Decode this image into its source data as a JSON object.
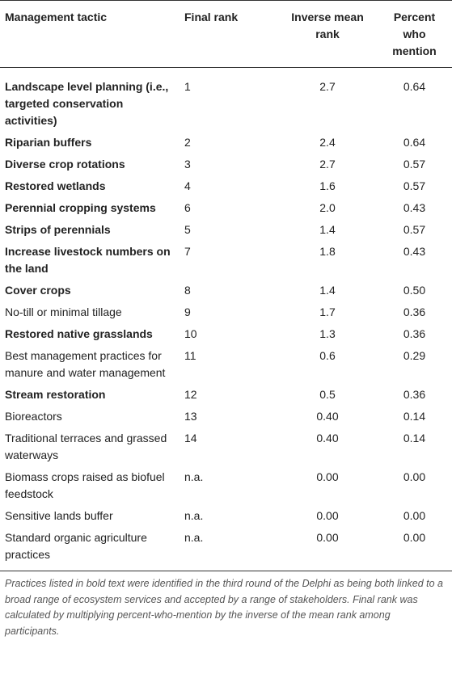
{
  "table": {
    "columns": [
      "Management tactic",
      "Final rank",
      "Inverse mean rank",
      "Percent who mention"
    ],
    "rows": [
      {
        "bold": true,
        "cells": [
          "Landscape level planning (i.e., targeted conservation activities)",
          "1",
          "2.7",
          "0.64"
        ]
      },
      {
        "bold": true,
        "cells": [
          "Riparian buffers",
          "2",
          "2.4",
          "0.64"
        ]
      },
      {
        "bold": true,
        "cells": [
          "Diverse crop rotations",
          "3",
          "2.7",
          "0.57"
        ]
      },
      {
        "bold": true,
        "cells": [
          "Restored wetlands",
          "4",
          "1.6",
          "0.57"
        ]
      },
      {
        "bold": true,
        "cells": [
          "Perennial cropping systems",
          "6",
          "2.0",
          "0.43"
        ]
      },
      {
        "bold": true,
        "cells": [
          "Strips of perennials",
          "5",
          "1.4",
          "0.57"
        ]
      },
      {
        "bold": true,
        "cells": [
          "Increase livestock numbers on the land",
          "7",
          "1.8",
          "0.43"
        ]
      },
      {
        "bold": true,
        "cells": [
          "Cover crops",
          "8",
          "1.4",
          "0.50"
        ]
      },
      {
        "bold": false,
        "cells": [
          "No-till or minimal tillage",
          "9",
          "1.7",
          "0.36"
        ]
      },
      {
        "bold": true,
        "cells": [
          "Restored native grasslands",
          "10",
          "1.3",
          "0.36"
        ]
      },
      {
        "bold": false,
        "cells": [
          "Best management practices for manure and water management",
          "11",
          "0.6",
          "0.29"
        ]
      },
      {
        "bold": true,
        "cells": [
          "Stream restoration",
          "12",
          "0.5",
          "0.36"
        ]
      },
      {
        "bold": false,
        "cells": [
          "Bioreactors",
          "13",
          "0.40",
          "0.14"
        ]
      },
      {
        "bold": false,
        "cells": [
          "Traditional terraces and grassed waterways",
          "14",
          "0.40",
          "0.14"
        ]
      },
      {
        "bold": false,
        "cells": [
          "Biomass crops raised as biofuel feedstock",
          "n.a.",
          "0.00",
          "0.00"
        ]
      },
      {
        "bold": false,
        "cells": [
          "Sensitive lands buffer",
          "n.a.",
          "0.00",
          "0.00"
        ]
      },
      {
        "bold": false,
        "cells": [
          "Standard organic agriculture practices",
          "n.a.",
          "0.00",
          "0.00"
        ]
      }
    ],
    "footnote": "Practices listed in bold text were identified in the third round of the Delphi as being both linked to a broad range of ecosystem services and accepted by a range of stakeholders. Final rank was calculated by multiplying percent-who-mention by the inverse of the mean rank among participants."
  }
}
